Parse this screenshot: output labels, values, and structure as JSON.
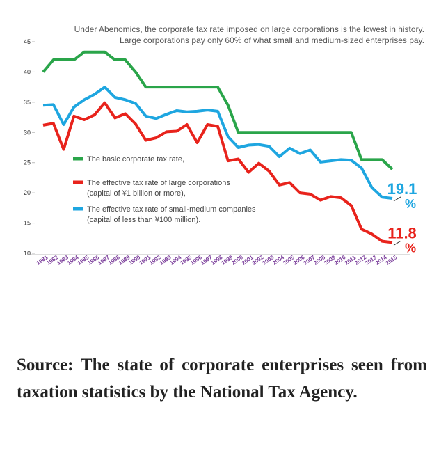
{
  "chart_data": {
    "type": "line",
    "subtitle_lines": [
      "Under Abenomics, the corporate tax rate imposed on large corporations is the lowest in history.",
      "Large corporations pay only 60% of what small and medium-sized enterprises pay."
    ],
    "categories": [
      "1981",
      "1982",
      "1983",
      "1984",
      "1985",
      "1986",
      "1987",
      "1988",
      "1989",
      "1990",
      "1991",
      "1992",
      "1993",
      "1994",
      "1995",
      "1996",
      "1997",
      "1998",
      "1999",
      "2000",
      "2001",
      "2002",
      "2003",
      "2004",
      "2005",
      "2006",
      "2007",
      "2008",
      "2009",
      "2010",
      "2011",
      "2012",
      "2013",
      "2014",
      "2015"
    ],
    "series": [
      {
        "name": "The basic corporate tax rate,",
        "color": "#2aa54a",
        "values": [
          40.0,
          42.0,
          42.0,
          42.0,
          43.3,
          43.3,
          43.3,
          42.0,
          42.0,
          40.0,
          37.5,
          37.5,
          37.5,
          37.5,
          37.5,
          37.5,
          37.5,
          37.5,
          34.5,
          30.0,
          30.0,
          30.0,
          30.0,
          30.0,
          30.0,
          30.0,
          30.0,
          30.0,
          30.0,
          30.0,
          30.0,
          25.5,
          25.5,
          25.5,
          23.9
        ]
      },
      {
        "name": "The effective tax rate of large corporations\n(capital of ¥1 billion or more),",
        "color": "#e8231c",
        "values": [
          31.2,
          31.5,
          27.2,
          32.7,
          32.1,
          32.9,
          34.9,
          32.4,
          33.1,
          31.4,
          28.7,
          29.1,
          30.1,
          30.2,
          31.3,
          28.3,
          31.3,
          31.0,
          25.3,
          25.6,
          23.4,
          24.9,
          23.6,
          21.3,
          21.7,
          20.0,
          19.8,
          18.8,
          19.4,
          19.2,
          17.9,
          14.0,
          13.2,
          12.0,
          11.8
        ]
      },
      {
        "name": "The effective tax rate of small-medium companies\n(capital of less than ¥100 million).",
        "color": "#1ea6e0",
        "values": [
          34.5,
          34.6,
          31.3,
          34.2,
          35.4,
          36.3,
          37.5,
          35.8,
          35.4,
          34.8,
          32.7,
          32.3,
          33.0,
          33.6,
          33.4,
          33.5,
          33.7,
          33.5,
          29.3,
          27.5,
          27.9,
          28.0,
          27.7,
          26.0,
          27.4,
          26.5,
          27.1,
          25.1,
          25.3,
          25.5,
          25.4,
          24.1,
          20.9,
          19.3,
          19.1
        ]
      }
    ],
    "annotations": [
      {
        "text": "19.1",
        "unit": "%",
        "series": 2
      },
      {
        "text": "11.8",
        "unit": "%",
        "series": 1
      }
    ],
    "ylim": [
      10,
      45
    ],
    "yticks": [
      10,
      15,
      20,
      25,
      30,
      35,
      40,
      45
    ],
    "grid": false
  },
  "source": "Source: The state of corporate enterprises seen from taxation statistics by the National Tax Agency."
}
